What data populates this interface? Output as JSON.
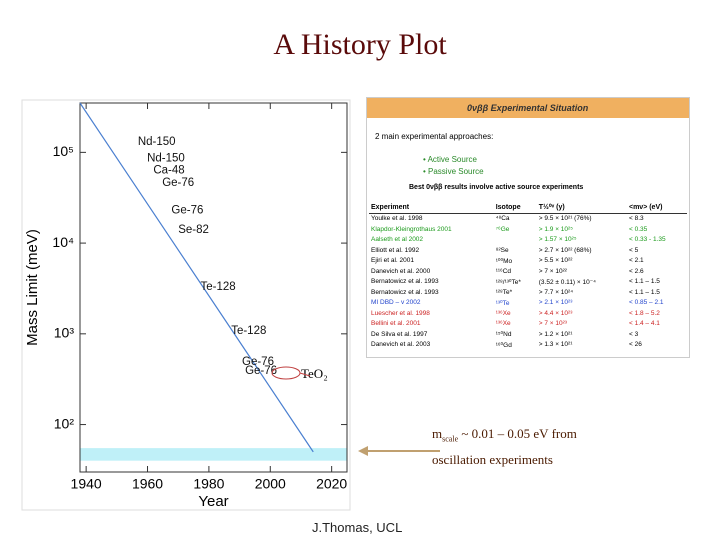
{
  "title": "A History Plot",
  "footer": "J.Thomas, UCL",
  "annotation_teo2": "TeO₂",
  "note": {
    "symbol": "m",
    "subscript": "scale",
    "line1": " ~ 0.01 – 0.05 eV  from",
    "line2": "oscillation experiments"
  },
  "inset": {
    "heading": "0νββ Experimental Situation",
    "approaches": "2 main experimental approaches:",
    "active": "• Active Source",
    "passive": "• Passive Source",
    "best": "Best 0νββ results involve active source experiments",
    "columns": [
      "Experiment",
      "Isotope",
      "T½⁰ᵛ (y)",
      "<mν> (eV)"
    ],
    "rows": [
      [
        "Youlke et al. 1998",
        "⁴⁸Ca",
        "> 9.5 × 10²¹ (76%)",
        "< 8.3"
      ],
      [
        "Klapdor-Kleingrothaus 2001",
        "⁷⁶Ge",
        "> 1.9 × 10²⁵",
        "< 0.35"
      ],
      [
        "Aalseth et al 2002",
        "",
        "> 1.57 × 10²⁵",
        "< 0.33 - 1.35"
      ],
      [
        "Elliott et al. 1992",
        "⁸²Se",
        "> 2.7 × 10²² (68%)",
        "< 5"
      ],
      [
        "Ejiri et al. 2001",
        "¹⁰⁰Mo",
        "> 5.5 × 10²²",
        "< 2.1"
      ],
      [
        "Danevich et al. 2000",
        "¹¹⁶Cd",
        "> 7 × 10²²",
        "< 2.6"
      ],
      [
        "Bernatowicz et al. 1993",
        "¹²⁸/¹³⁰Te*",
        "(3.52 ± 0.11) × 10⁻⁴",
        "< 1.1 – 1.5"
      ],
      [
        "Bernatowicz et al. 1993",
        "¹²⁸Te*",
        "> 7.7 × 10²⁴",
        "< 1.1 – 1.5"
      ],
      [
        "MI DBD – v 2002",
        "¹³⁰Te",
        "> 2.1 × 10²³",
        "< 0.85 – 2.1"
      ],
      [
        "Luescher et al. 1998",
        "¹³⁶Xe",
        "> 4.4 × 10²³",
        "< 1.8 – 5.2"
      ],
      [
        "Bellini et al. 2001",
        "¹³⁶Xe",
        "> 7 × 10²³",
        "< 1.4 – 4.1"
      ],
      [
        "De Silva et al. 1997",
        "¹⁵⁰Nd",
        "> 1.2 × 10²¹",
        "< 3"
      ],
      [
        "Danevich et al. 2003",
        "¹⁶⁰Gd",
        "> 1.3 × 10²¹",
        "< 26"
      ]
    ],
    "row_classes": [
      "",
      "g",
      "g",
      "",
      "",
      "",
      "",
      "",
      "b",
      "r",
      "r",
      "",
      ""
    ]
  },
  "chart_data": {
    "type": "scatter",
    "xlabel": "Year",
    "ylabel": "Mass Limit (meV)",
    "labels": [
      "Nd-150",
      "Nd-150",
      "Ca-48",
      "Ge-76",
      "Ge-76",
      "Se-82",
      "Te-128",
      "Te-128",
      "Ge-76",
      "Ge-76"
    ],
    "x": [
      1963,
      1966,
      1967,
      1970,
      1973,
      1975,
      1983,
      1993,
      1996,
      1997
    ],
    "values": [
      130000,
      86000,
      63000,
      46000,
      23000,
      14000,
      3300,
      1070,
      490,
      390
    ],
    "trend": {
      "x": [
        1938,
        2014
      ],
      "values": [
        350000,
        50
      ],
      "color": "#4a7fd0"
    },
    "band": {
      "range": [
        40,
        55
      ],
      "color": "#bff0f8"
    },
    "ylog": true,
    "xlim": [
      1938,
      2025
    ],
    "ylim": [
      30,
      350000
    ],
    "xticks": [
      1940,
      1960,
      1980,
      2000,
      2020
    ],
    "yticks": [
      {
        "value": 100,
        "label": "10²"
      },
      {
        "value": 1000,
        "label": "10³"
      },
      {
        "value": 10000,
        "label": "10⁴"
      },
      {
        "value": 100000,
        "label": "10⁵"
      }
    ]
  }
}
